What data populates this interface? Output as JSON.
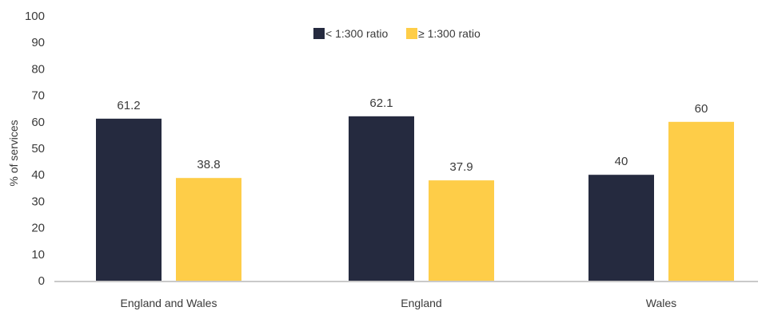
{
  "chart_data": {
    "type": "bar",
    "title": "",
    "xlabel": "",
    "ylabel": "% of services",
    "ylim": [
      0,
      100
    ],
    "yticks": [
      0,
      10,
      20,
      30,
      40,
      50,
      60,
      70,
      80,
      90,
      100
    ],
    "grid": false,
    "legend_position": "top-center",
    "categories": [
      "England and Wales",
      "England",
      "Wales"
    ],
    "series": [
      {
        "name": "< 1:300 ratio",
        "values": [
          61.2,
          62.1,
          40
        ],
        "labels": [
          "61.2",
          "62.1",
          "40"
        ],
        "color": "#252a3f"
      },
      {
        "name": "≥ 1:300  ratio",
        "values": [
          38.8,
          37.9,
          60
        ],
        "labels": [
          "38.8",
          "37.9",
          "60"
        ],
        "color": "#fecd48"
      }
    ]
  }
}
